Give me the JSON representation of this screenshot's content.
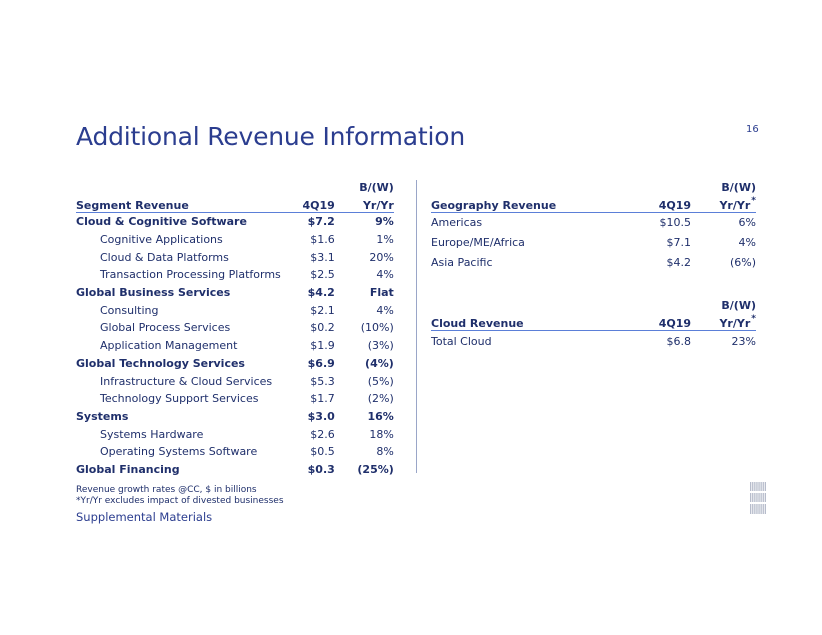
{
  "slide": {
    "title": "Additional Revenue Information",
    "page_number": "16"
  },
  "segment_table": {
    "header_top": [
      "",
      "",
      "B/(W)"
    ],
    "header": [
      "Segment Revenue",
      "4Q19",
      "Yr/Yr"
    ],
    "rows": [
      {
        "label": "Cloud & Cognitive Software",
        "value": "$7.2",
        "change": "9%",
        "level": 0
      },
      {
        "label": "Cognitive Applications",
        "value": "$1.6",
        "change": "1%",
        "level": 1
      },
      {
        "label": "Cloud & Data Platforms",
        "value": "$3.1",
        "change": "20%",
        "level": 1
      },
      {
        "label": "Transaction Processing Platforms",
        "value": "$2.5",
        "change": "4%",
        "level": 1
      },
      {
        "label": "Global Business Services",
        "value": "$4.2",
        "change": "Flat",
        "level": 0
      },
      {
        "label": "Consulting",
        "value": "$2.1",
        "change": "4%",
        "level": 1
      },
      {
        "label": "Global Process Services",
        "value": "$0.2",
        "change": "(10%)",
        "level": 1
      },
      {
        "label": "Application Management",
        "value": "$1.9",
        "change": "(3%)",
        "level": 1
      },
      {
        "label": "Global Technology Services",
        "value": "$6.9",
        "change": "(4%)",
        "level": 0
      },
      {
        "label": "Infrastructure & Cloud Services",
        "value": "$5.3",
        "change": "(5%)",
        "level": 1
      },
      {
        "label": "Technology Support Services",
        "value": "$1.7",
        "change": "(2%)",
        "level": 1
      },
      {
        "label": "Systems",
        "value": "$3.0",
        "change": "16%",
        "level": 0
      },
      {
        "label": "Systems Hardware",
        "value": "$2.6",
        "change": "18%",
        "level": 1
      },
      {
        "label": "Operating Systems Software",
        "value": "$0.5",
        "change": "8%",
        "level": 1
      },
      {
        "label": "Global Financing",
        "value": "$0.3",
        "change": "(25%)",
        "level": 0
      }
    ]
  },
  "geography_table": {
    "header_top": [
      "",
      "",
      "B/(W)"
    ],
    "header": [
      "Geography Revenue",
      "4Q19",
      "Yr/Yr"
    ],
    "header_mark": "*",
    "rows": [
      {
        "label": "Americas",
        "value": "$10.5",
        "change": "6%"
      },
      {
        "label": "Europe/ME/Africa",
        "value": "$7.1",
        "change": "4%"
      },
      {
        "label": "Asia Pacific",
        "value": "$4.2",
        "change": "(6%)"
      }
    ]
  },
  "cloud_table": {
    "header_top": [
      "",
      "",
      "B/(W)"
    ],
    "header": [
      "Cloud Revenue",
      "4Q19",
      "Yr/Yr"
    ],
    "header_mark": "*",
    "rows": [
      {
        "label": "Total Cloud",
        "value": "$6.8",
        "change": "23%"
      }
    ]
  },
  "footnotes": {
    "line1": "Revenue growth rates @CC, $ in billions",
    "line2": "*Yr/Yr excludes impact of divested businesses"
  },
  "section_label": "Supplemental Materials",
  "logo": {
    "name": "IBM",
    "color": "#b6bccb"
  }
}
